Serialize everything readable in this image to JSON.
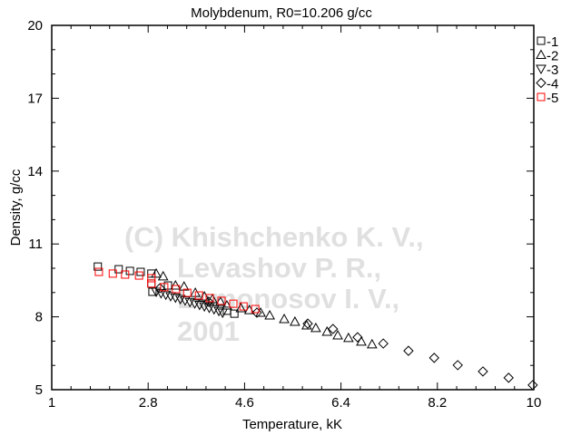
{
  "chart_data": {
    "type": "scatter",
    "title": "Molybdenum, R0=10.206 g/cc",
    "xlabel": "Temperature, kK",
    "ylabel": "Density, g/cc",
    "xlim": [
      1,
      10
    ],
    "ylim": [
      5,
      20
    ],
    "xticks": [
      "1",
      "2.8",
      "4.6",
      "6.4",
      "8.2",
      "10"
    ],
    "yticks": [
      "5",
      "8",
      "11",
      "14",
      "17",
      "20"
    ],
    "grid": false,
    "legend_position": "right",
    "watermark": [
      "(C) Khishchenko K. V.,",
      "Levashov P. R.,",
      "Lomonosov I. V.,",
      "2001"
    ],
    "series": [
      {
        "name": "-1",
        "marker": "square",
        "color": "#000000",
        "x": [
          1.86,
          2.25,
          2.46,
          2.66,
          2.86,
          2.86,
          2.88,
          3.17,
          4.27,
          4.41
        ],
        "y": [
          10.07,
          9.96,
          9.89,
          9.85,
          9.78,
          9.37,
          9.03,
          9.29,
          8.25,
          8.13
        ]
      },
      {
        "name": "-2",
        "marker": "triangle-up",
        "color": "#000000",
        "x": [
          2.95,
          3.08,
          3.31,
          3.47,
          3.68,
          3.85,
          4.0,
          4.15,
          4.27,
          4.53,
          4.69,
          4.9,
          5.07,
          5.34,
          5.54,
          5.76,
          5.93,
          6.14,
          6.34,
          6.54,
          6.78,
          6.98
        ],
        "y": [
          9.78,
          9.67,
          9.29,
          9.25,
          8.99,
          8.84,
          8.73,
          8.62,
          8.47,
          8.36,
          8.28,
          8.17,
          8.06,
          7.91,
          7.8,
          7.65,
          7.54,
          7.39,
          7.24,
          7.13,
          6.98,
          6.87
        ]
      },
      {
        "name": "-3",
        "marker": "triangle-down",
        "color": "#000000",
        "x": [
          2.95,
          3.04,
          3.13,
          3.22,
          3.31,
          3.4,
          3.49,
          3.58,
          3.67,
          3.76,
          3.85,
          3.94,
          4.03,
          4.12,
          4.19
        ],
        "y": [
          9.03,
          8.97,
          8.91,
          8.85,
          8.79,
          8.73,
          8.67,
          8.61,
          8.55,
          8.49,
          8.43,
          8.37,
          8.31,
          8.24,
          8.17
        ]
      },
      {
        "name": "-4",
        "marker": "diamond",
        "color": "#000000",
        "x": [
          3.02,
          3.93,
          4.83,
          5.78,
          6.25,
          6.71,
          7.19,
          7.66,
          8.14,
          8.58,
          9.05,
          9.53,
          9.98
        ],
        "y": [
          9.18,
          8.62,
          8.17,
          7.72,
          7.5,
          7.16,
          6.9,
          6.6,
          6.31,
          6.01,
          5.75,
          5.49,
          5.19
        ]
      },
      {
        "name": "-5",
        "marker": "square",
        "color": "#ff0000",
        "x": [
          1.88,
          2.14,
          2.37,
          2.63,
          2.86,
          2.86,
          3.1,
          3.32,
          3.53,
          3.75,
          3.95,
          4.17,
          4.39,
          4.58,
          4.8
        ],
        "y": [
          9.85,
          9.78,
          9.74,
          9.7,
          9.59,
          9.37,
          9.22,
          9.14,
          8.99,
          8.88,
          8.77,
          8.66,
          8.54,
          8.43,
          8.32
        ]
      }
    ]
  }
}
